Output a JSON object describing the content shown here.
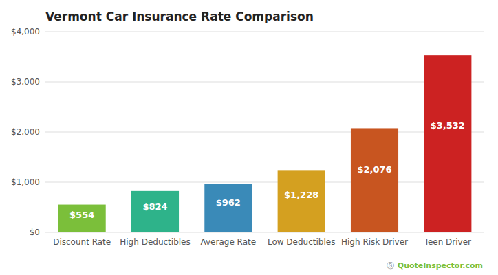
{
  "chart_data": {
    "type": "bar",
    "title": "Vermont Car Insurance Rate Comparison",
    "categories": [
      "Discount Rate",
      "High Deductibles",
      "Average Rate",
      "Low Deductibles",
      "High Risk Driver",
      "Teen Driver"
    ],
    "values": [
      554,
      824,
      962,
      1228,
      2076,
      3532
    ],
    "value_labels": [
      "$554",
      "$824",
      "$962",
      "$1,228",
      "$2,076",
      "$3,532"
    ],
    "colors": [
      "#7BBF3A",
      "#2EB38A",
      "#3A8AB8",
      "#D4A020",
      "#C85520",
      "#CC2222"
    ],
    "ylim": [
      0,
      4000
    ],
    "yticks": [
      {
        "value": 0,
        "label": "$0"
      },
      {
        "value": 1000,
        "label": "$1,000"
      },
      {
        "value": 2000,
        "label": "$2,000"
      },
      {
        "value": 3000,
        "label": "$3,000"
      },
      {
        "value": 4000,
        "label": "$4,000"
      }
    ],
    "grid": true,
    "data_labels": true,
    "annotations": [
      {
        "text": "Ⓢ"
      },
      {
        "text": "QuoteInspector.com",
        "color": "#7BBF3A"
      }
    ]
  }
}
